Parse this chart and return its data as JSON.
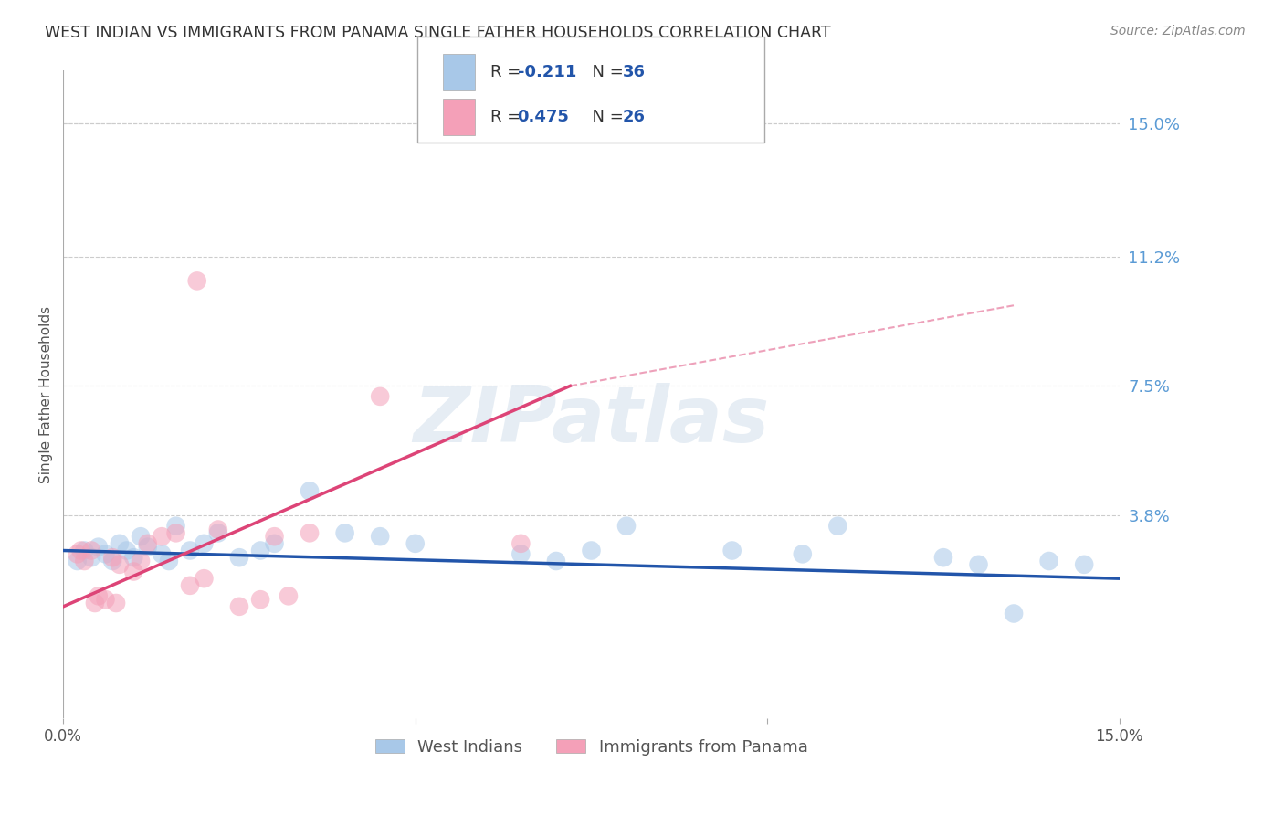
{
  "title": "WEST INDIAN VS IMMIGRANTS FROM PANAMA SINGLE FATHER HOUSEHOLDS CORRELATION CHART",
  "source": "Source: ZipAtlas.com",
  "ylabel": "Single Father Households",
  "ytick_labels": [
    "15.0%",
    "11.2%",
    "7.5%",
    "3.8%"
  ],
  "ytick_values": [
    15.0,
    11.2,
    7.5,
    3.8
  ],
  "xlim": [
    0.0,
    15.0
  ],
  "ylim": [
    -2.0,
    16.5
  ],
  "legend_blue_r": "-0.211",
  "legend_blue_n": "36",
  "legend_pink_r": "0.475",
  "legend_pink_n": "26",
  "blue_label": "West Indians",
  "pink_label": "Immigrants from Panama",
  "blue_color": "#a8c8e8",
  "pink_color": "#f4a0b8",
  "blue_line_color": "#2255aa",
  "pink_line_color": "#dd4477",
  "blue_scatter_x": [
    0.2,
    0.3,
    0.4,
    0.5,
    0.6,
    0.7,
    0.8,
    0.9,
    1.0,
    1.1,
    1.2,
    1.4,
    1.5,
    1.6,
    1.8,
    2.0,
    2.2,
    2.5,
    2.8,
    3.0,
    3.5,
    4.0,
    4.5,
    5.0,
    6.5,
    7.0,
    8.0,
    9.5,
    10.5,
    11.0,
    12.5,
    13.0,
    13.5,
    14.0,
    14.5,
    7.5
  ],
  "blue_scatter_y": [
    2.5,
    2.8,
    2.6,
    2.9,
    2.7,
    2.5,
    3.0,
    2.8,
    2.6,
    3.2,
    2.9,
    2.7,
    2.5,
    3.5,
    2.8,
    3.0,
    3.3,
    2.6,
    2.8,
    3.0,
    4.5,
    3.3,
    3.2,
    3.0,
    2.7,
    2.5,
    3.5,
    2.8,
    2.7,
    3.5,
    2.6,
    2.4,
    1.0,
    2.5,
    2.4,
    2.8
  ],
  "pink_scatter_x": [
    0.2,
    0.3,
    0.4,
    0.5,
    0.6,
    0.7,
    0.8,
    1.0,
    1.1,
    1.2,
    1.4,
    1.6,
    1.8,
    2.0,
    2.2,
    2.5,
    2.8,
    3.0,
    3.2,
    3.5,
    4.5,
    6.5,
    0.25,
    0.45,
    0.75,
    1.9
  ],
  "pink_scatter_y": [
    2.7,
    2.5,
    2.8,
    1.5,
    1.4,
    2.6,
    2.4,
    2.2,
    2.5,
    3.0,
    3.2,
    3.3,
    1.8,
    2.0,
    3.4,
    1.2,
    1.4,
    3.2,
    1.5,
    3.3,
    7.2,
    3.0,
    2.8,
    1.3,
    1.3,
    10.5
  ],
  "blue_trend_x0": 0.0,
  "blue_trend_y0": 2.8,
  "blue_trend_x1": 15.0,
  "blue_trend_y1": 2.0,
  "pink_solid_x0": 0.0,
  "pink_solid_y0": 1.2,
  "pink_solid_x1": 7.2,
  "pink_solid_y1": 7.5,
  "pink_dashed_x0": 7.2,
  "pink_dashed_y0": 7.5,
  "pink_dashed_x1": 13.5,
  "pink_dashed_y1": 9.8,
  "watermark_text": "ZIPatlas",
  "background_color": "#ffffff",
  "grid_color": "#cccccc"
}
